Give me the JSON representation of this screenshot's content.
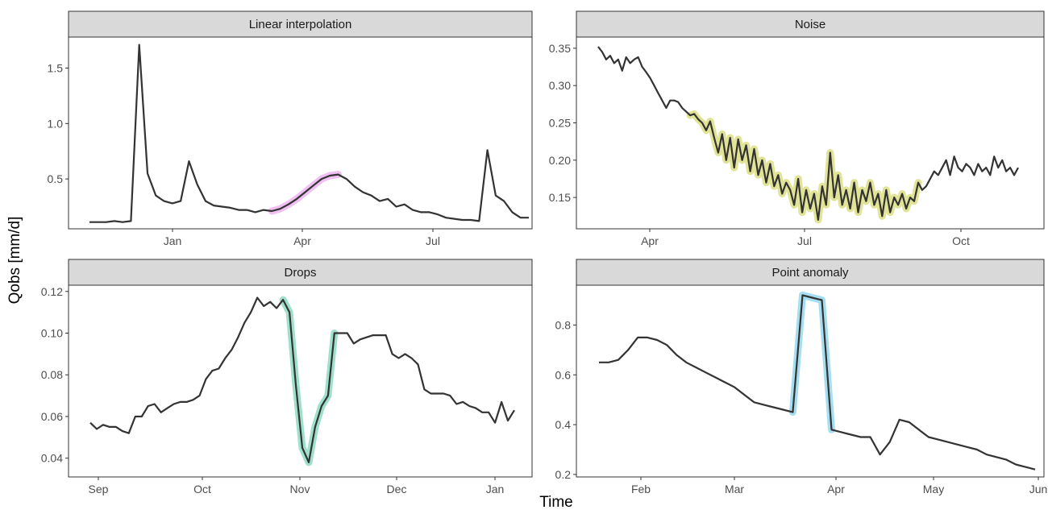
{
  "figure": {
    "xlabel": "Time",
    "ylabel": "Qobs [mm/d]"
  },
  "chart_data": [
    {
      "type": "line",
      "title": "Linear interpolation",
      "highlight_color": "#e38ce8",
      "x_ticks": [
        "Jan",
        "Apr",
        "Jul"
      ],
      "y_ticks": [
        "0.5",
        "1.0",
        "1.5"
      ],
      "series": [
        {
          "values": [
            0.11,
            0.11,
            0.11,
            0.12,
            0.11,
            0.12,
            1.71,
            0.55,
            0.35,
            0.3,
            0.28,
            0.3,
            0.66,
            0.45,
            0.3,
            0.26,
            0.25,
            0.24,
            0.22,
            0.22,
            0.2,
            0.22,
            0.21,
            0.23,
            0.27,
            0.32,
            0.38,
            0.44,
            0.5,
            0.53,
            0.54,
            0.5,
            0.43,
            0.38,
            0.35,
            0.3,
            0.32,
            0.25,
            0.27,
            0.22,
            0.2,
            0.2,
            0.18,
            0.15,
            0.14,
            0.13,
            0.13,
            0.12,
            0.76,
            0.35,
            0.3,
            0.2,
            0.15,
            0.15
          ]
        }
      ],
      "highlight": {
        "from_index": 22,
        "to_index": 30
      }
    },
    {
      "type": "line",
      "title": "Noise",
      "highlight_color": "#c9cc3f",
      "x_ticks": [
        "Apr",
        "Jul",
        "Oct"
      ],
      "y_ticks": [
        "0.15",
        "0.20",
        "0.25",
        "0.30",
        "0.35"
      ],
      "series": [
        {
          "values": [
            0.352,
            0.345,
            0.335,
            0.34,
            0.33,
            0.335,
            0.32,
            0.338,
            0.33,
            0.335,
            0.338,
            0.325,
            0.318,
            0.31,
            0.3,
            0.29,
            0.28,
            0.27,
            0.28,
            0.28,
            0.278,
            0.27,
            0.265,
            0.26,
            0.262,
            0.255,
            0.25,
            0.24,
            0.252,
            0.23,
            0.21,
            0.235,
            0.2,
            0.23,
            0.19,
            0.228,
            0.2,
            0.22,
            0.185,
            0.215,
            0.18,
            0.2,
            0.17,
            0.195,
            0.165,
            0.18,
            0.155,
            0.17,
            0.16,
            0.14,
            0.175,
            0.13,
            0.16,
            0.135,
            0.155,
            0.12,
            0.165,
            0.14,
            0.21,
            0.15,
            0.18,
            0.14,
            0.16,
            0.135,
            0.17,
            0.13,
            0.16,
            0.145,
            0.17,
            0.14,
            0.155,
            0.125,
            0.16,
            0.13,
            0.15,
            0.14,
            0.155,
            0.135,
            0.15,
            0.145,
            0.17,
            0.16,
            0.165,
            0.175,
            0.185,
            0.18,
            0.19,
            0.2,
            0.18,
            0.205,
            0.19,
            0.185,
            0.195,
            0.19,
            0.18,
            0.195,
            0.185,
            0.19,
            0.18,
            0.205,
            0.19,
            0.2,
            0.185,
            0.19,
            0.18,
            0.19
          ]
        }
      ],
      "highlight": {
        "from_index": 23,
        "to_index": 80
      }
    },
    {
      "type": "line",
      "title": "Drops",
      "highlight_color": "#4fc7a3",
      "x_ticks": [
        "Sep",
        "Oct",
        "Nov",
        "Dec",
        "Jan"
      ],
      "y_ticks": [
        "0.04",
        "0.06",
        "0.08",
        "0.10",
        "0.12"
      ],
      "series": [
        {
          "values": [
            0.057,
            0.054,
            0.056,
            0.055,
            0.055,
            0.053,
            0.052,
            0.06,
            0.06,
            0.065,
            0.066,
            0.062,
            0.064,
            0.066,
            0.067,
            0.067,
            0.068,
            0.07,
            0.078,
            0.082,
            0.083,
            0.088,
            0.092,
            0.098,
            0.105,
            0.11,
            0.117,
            0.113,
            0.115,
            0.112,
            0.116,
            0.11,
            0.075,
            0.045,
            0.038,
            0.055,
            0.065,
            0.07,
            0.1,
            0.1,
            0.1,
            0.095,
            0.097,
            0.098,
            0.099,
            0.099,
            0.099,
            0.09,
            0.088,
            0.09,
            0.088,
            0.085,
            0.073,
            0.071,
            0.071,
            0.071,
            0.07,
            0.066,
            0.067,
            0.065,
            0.064,
            0.062,
            0.062,
            0.057,
            0.067,
            0.058,
            0.063
          ]
        }
      ],
      "highlight": {
        "from_index": 30,
        "to_index": 38
      }
    },
    {
      "type": "line",
      "title": "Point anomaly",
      "highlight_color": "#5cc3e6",
      "x_ticks": [
        "Feb",
        "Mar",
        "Apr",
        "May",
        "Jun"
      ],
      "y_ticks": [
        "0.2",
        "0.4",
        "0.6",
        "0.8"
      ],
      "series": [
        {
          "values": [
            0.65,
            0.65,
            0.66,
            0.7,
            0.75,
            0.75,
            0.74,
            0.72,
            0.68,
            0.65,
            0.63,
            0.61,
            0.59,
            0.57,
            0.55,
            0.52,
            0.49,
            0.48,
            0.47,
            0.46,
            0.45,
            0.92,
            0.91,
            0.9,
            0.38,
            0.37,
            0.36,
            0.35,
            0.35,
            0.28,
            0.33,
            0.42,
            0.41,
            0.38,
            0.35,
            0.34,
            0.33,
            0.32,
            0.31,
            0.3,
            0.28,
            0.27,
            0.26,
            0.24,
            0.23,
            0.22
          ]
        }
      ],
      "highlight": {
        "from_index": 20,
        "to_index": 24
      }
    }
  ]
}
